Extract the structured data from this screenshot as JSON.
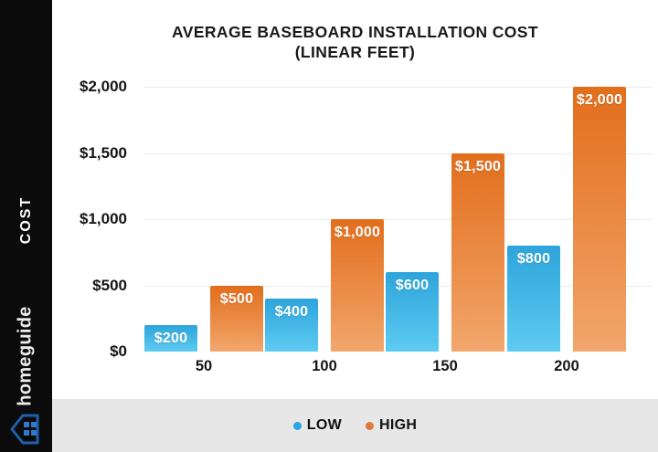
{
  "sidebar": {
    "axis_label": "COST",
    "brand_name": "homeguide",
    "brand_blue": "#2e79c9"
  },
  "chart": {
    "title_line1": "AVERAGE BASEBOARD INSTALLATION COST",
    "title_line2": "(LINEAR FEET)"
  },
  "chart_data": {
    "type": "bar",
    "title": "AVERAGE BASEBOARD INSTALLATION COST (LINEAR FEET)",
    "xlabel": "LINEAR FEET",
    "ylabel": "COST",
    "categories": [
      "50",
      "100",
      "150",
      "200"
    ],
    "series": [
      {
        "name": "LOW",
        "values": [
          200,
          400,
          600,
          800
        ],
        "labels": [
          "$200",
          "$400",
          "$600",
          "$800"
        ],
        "color_top": "#2da4db",
        "color_bottom": "#5ecbf2",
        "legend_dot": "#2ba6dc"
      },
      {
        "name": "HIGH",
        "values": [
          500,
          1000,
          1500,
          2000
        ],
        "labels": [
          "$500",
          "$1,000",
          "$1,500",
          "$2,000"
        ],
        "color_top": "#e26e1c",
        "color_bottom": "#f2a66c",
        "legend_dot": "#df7a3a"
      }
    ],
    "y_ticks": [
      {
        "value": 0,
        "label": "$0"
      },
      {
        "value": 500,
        "label": "$500"
      },
      {
        "value": 1000,
        "label": "$1,000"
      },
      {
        "value": 1500,
        "label": "$1,500"
      },
      {
        "value": 2000,
        "label": "$2,000"
      }
    ],
    "ylim": [
      0,
      2000
    ],
    "grid": "horizontal",
    "legend_position": "bottom"
  }
}
